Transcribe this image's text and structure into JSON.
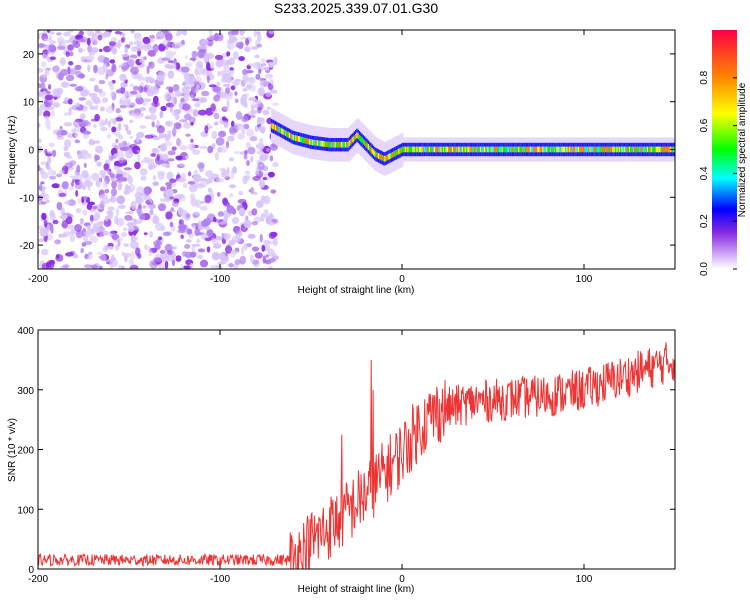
{
  "chart_data": [
    {
      "type": "heatmap",
      "title": "S233.2025.339.07.01.G30",
      "xlabel": "Height of straight line (km)",
      "ylabel": "Frequency (Hz)",
      "xlim": [
        -200,
        150
      ],
      "ylim": [
        -25,
        25
      ],
      "xticks": [
        -200,
        -100,
        0,
        100
      ],
      "yticks": [
        20,
        10,
        0,
        -10,
        -20
      ],
      "xtick_labels": [
        "-200",
        "-100",
        "0",
        "100"
      ],
      "ytick_labels": [
        "20",
        "10",
        "0",
        "-10",
        "-20"
      ],
      "noise_region_x": [
        -200,
        -72
      ],
      "ridge": {
        "description_points_x": [
          -72,
          -60,
          -50,
          -40,
          -30,
          -25,
          -20,
          -15,
          -10,
          -5,
          0,
          20,
          40,
          60,
          80,
          100,
          120,
          150
        ],
        "freq_hz": [
          5,
          2.5,
          1.5,
          1,
          1,
          3,
          1,
          -1,
          -2,
          -1,
          0,
          0,
          0,
          0,
          0,
          0,
          0,
          0
        ]
      },
      "colorbar": {
        "label": "Normalized spectral amplitude",
        "range": [
          0,
          1
        ],
        "ticks": [
          0.0,
          0.2,
          0.4,
          0.6,
          0.8
        ],
        "tick_labels": [
          "0.0",
          "0.2",
          "0.4",
          "0.6",
          "0.8"
        ]
      }
    },
    {
      "type": "line",
      "title": "",
      "xlabel": "Height of straight line (km)",
      "ylabel": "SNR (10 * v/v)",
      "xlim": [
        -200,
        150
      ],
      "ylim": [
        0,
        400
      ],
      "xticks": [
        -200,
        -100,
        0,
        100
      ],
      "yticks": [
        0,
        100,
        200,
        300,
        400
      ],
      "xtick_labels": [
        "-200",
        "-100",
        "0",
        "100"
      ],
      "ytick_labels": [
        "0",
        "100",
        "200",
        "300",
        "400"
      ],
      "series": [
        {
          "name": "SNR",
          "color": "#ee3333",
          "trend_x": [
            -200,
            -150,
            -100,
            -60,
            -50,
            -40,
            -30,
            -20,
            -10,
            0,
            10,
            20,
            40,
            60,
            80,
            100,
            120,
            150
          ],
          "trend_y": [
            15,
            15,
            15,
            15,
            45,
            70,
            95,
            125,
            160,
            195,
            240,
            265,
            280,
            285,
            290,
            300,
            320,
            350
          ],
          "spikes": [
            {
              "x": -33,
              "y": 225
            },
            {
              "x": -17,
              "y": 350
            },
            {
              "x": -16,
              "y": 300
            }
          ]
        }
      ]
    }
  ]
}
